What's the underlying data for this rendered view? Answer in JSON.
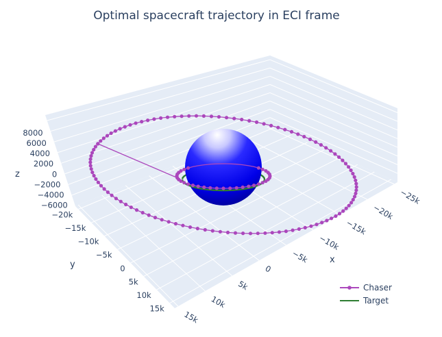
{
  "chart_data": {
    "type": "scatter3d",
    "title": "Optimal spacecraft trajectory in ECI frame",
    "axes": {
      "x": {
        "label": "x",
        "range": [
          -25000,
          20000
        ],
        "ticks": [
          "−25k",
          "−20k",
          "−15k",
          "−10k",
          "−5k",
          "0",
          "5k",
          "10k",
          "15k"
        ]
      },
      "y": {
        "label": "y",
        "range": [
          -20000,
          15000
        ],
        "ticks": [
          "−20k",
          "−15k",
          "−10k",
          "−5k",
          "0",
          "5k",
          "10k",
          "15k"
        ]
      },
      "z": {
        "label": "z",
        "range": [
          -6000,
          8000
        ],
        "ticks": [
          "8000",
          "6000",
          "4000",
          "2000",
          "0",
          "−2000",
          "−4000",
          "−6000"
        ]
      }
    },
    "grid": true,
    "legend_position": "bottom-right",
    "earth_radius_km": 6371,
    "series": [
      {
        "name": "Chaser",
        "mode": "lines+markers",
        "color": "#ab47bc",
        "description": "elliptical transfer orbit from ~7000 km to ~21000 km radius"
      },
      {
        "name": "Target",
        "mode": "lines",
        "color": "#2e7d32",
        "description": "circular orbit at ~7000 km radius"
      }
    ],
    "colors": {
      "earth": "#0000ff",
      "grid_background": "#e5ecf6",
      "grid_line": "#ffffff"
    }
  }
}
